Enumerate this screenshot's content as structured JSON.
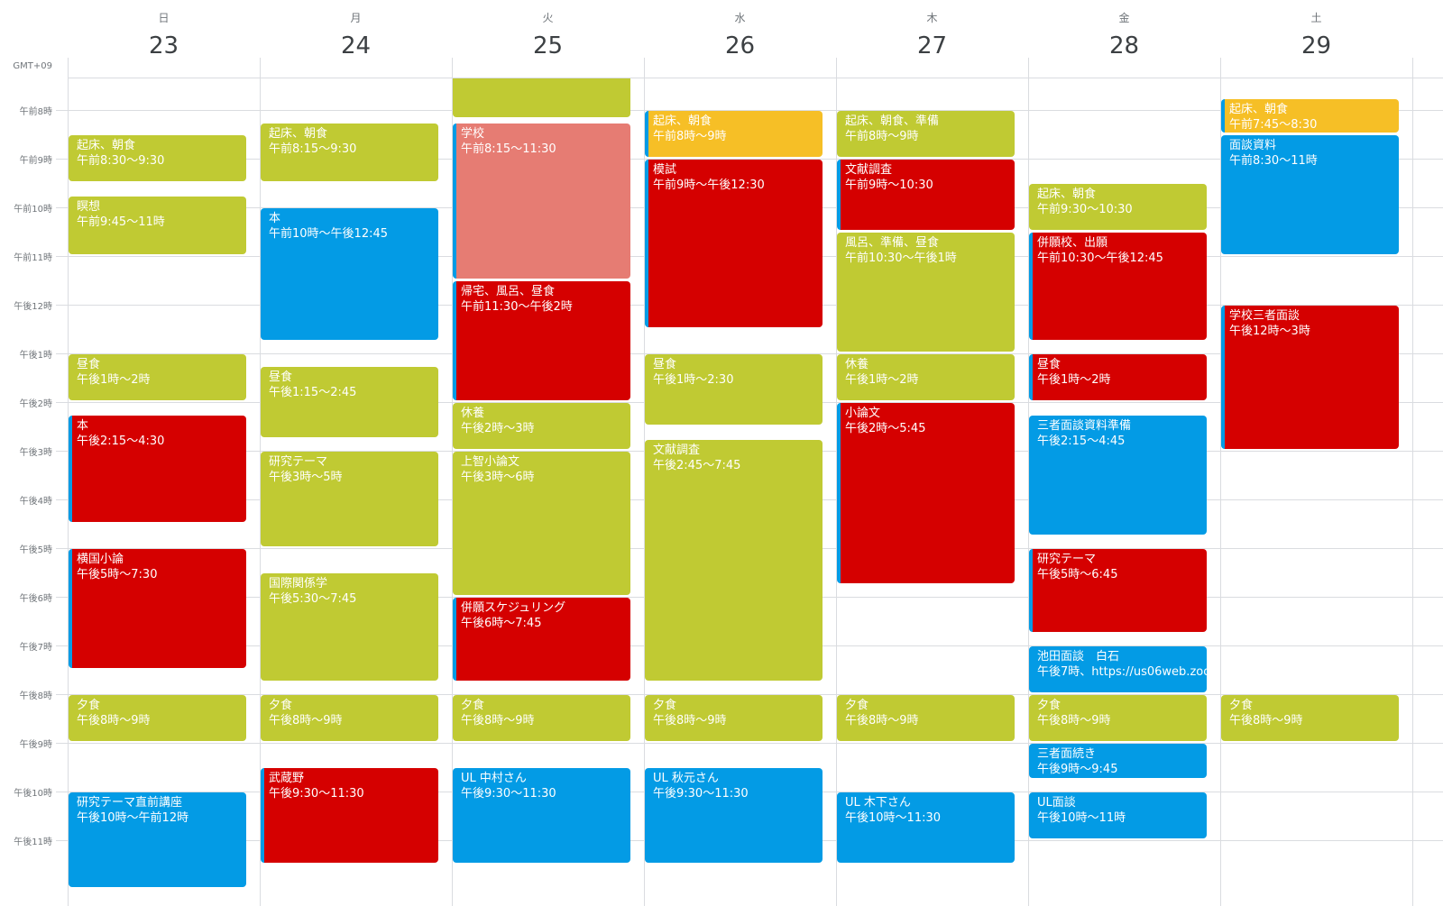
{
  "timezone": "GMT+09",
  "hours": [
    "午前8時",
    "午前9時",
    "午前10時",
    "午前11時",
    "午後12時",
    "午後1時",
    "午後2時",
    "午後3時",
    "午後4時",
    "午後5時",
    "午後6時",
    "午後7時",
    "午後8時",
    "午後9時",
    "午後10時",
    "午後11時"
  ],
  "days": [
    {
      "weekday": "日",
      "date": "23",
      "events": [
        {
          "title": "起床、朝食",
          "time": "午前8:30〜9:30"
        },
        {
          "title": "瞑想",
          "time": "午前9:45〜11時"
        },
        {
          "title": "昼食",
          "time": "午後1時〜2時"
        },
        {
          "title": "本",
          "time": "午後2:15〜4:30"
        },
        {
          "title": "横国小論",
          "time": "午後5時〜7:30"
        },
        {
          "title": "夕食",
          "time": "午後8時〜9時"
        },
        {
          "title": "研究テーマ直前講座",
          "time": "午後10時〜午前12時"
        }
      ]
    },
    {
      "weekday": "月",
      "date": "24",
      "events": [
        {
          "title": "起床、朝食",
          "time": "午前8:15〜9:30"
        },
        {
          "title": "本",
          "time": "午前10時〜午後12:45"
        },
        {
          "title": "昼食",
          "time": "午後1:15〜2:45"
        },
        {
          "title": "研究テーマ",
          "time": "午後3時〜5時"
        },
        {
          "title": "国際関係学",
          "time": "午後5:30〜7:45"
        },
        {
          "title": "夕食",
          "time": "午後8時〜9時"
        },
        {
          "title": "武蔵野",
          "time": "午後9:30〜11:30"
        }
      ]
    },
    {
      "weekday": "火",
      "date": "25",
      "events": [
        {
          "title": "学校",
          "time": "午前8:15〜11:30"
        },
        {
          "title": "帰宅、風呂、昼食",
          "time": "午前11:30〜午後2時"
        },
        {
          "title": "休養",
          "time": "午後2時〜3時"
        },
        {
          "title": "上智小論文",
          "time": "午後3時〜6時"
        },
        {
          "title": "併願スケジュリング",
          "time": "午後6時〜7:45"
        },
        {
          "title": "夕食",
          "time": "午後8時〜9時"
        },
        {
          "title": "UL 中村さん",
          "time": "午後9:30〜11:30"
        }
      ]
    },
    {
      "weekday": "水",
      "date": "26",
      "events": [
        {
          "title": "起床、朝食",
          "time": "午前8時〜9時"
        },
        {
          "title": "模試",
          "time": "午前9時〜午後12:30"
        },
        {
          "title": "昼食",
          "time": "午後1時〜2:30"
        },
        {
          "title": "文献調査",
          "time": "午後2:45〜7:45"
        },
        {
          "title": "夕食",
          "time": "午後8時〜9時"
        },
        {
          "title": "UL 秋元さん",
          "time": "午後9:30〜11:30"
        }
      ]
    },
    {
      "weekday": "木",
      "date": "27",
      "events": [
        {
          "title": "起床、朝食、準備",
          "time": "午前8時〜9時"
        },
        {
          "title": "文献調査",
          "time": "午前9時〜10:30"
        },
        {
          "title": "風呂、準備、昼食",
          "time": "午前10:30〜午後1時"
        },
        {
          "title": "休養",
          "time": "午後1時〜2時"
        },
        {
          "title": "小論文",
          "time": "午後2時〜5:45"
        },
        {
          "title": "夕食",
          "time": "午後8時〜9時"
        },
        {
          "title": "UL 木下さん",
          "time": "午後10時〜11:30"
        }
      ]
    },
    {
      "weekday": "金",
      "date": "28",
      "events": [
        {
          "title": "起床、朝食",
          "time": "午前9:30〜10:30"
        },
        {
          "title": "併願校、出願",
          "time": "午前10:30〜午後12:45"
        },
        {
          "title": "昼食",
          "time": "午後1時〜2時"
        },
        {
          "title": "三者面談資料準備",
          "time": "午後2:15〜4:45"
        },
        {
          "title": "研究テーマ",
          "time": "午後5時〜6:45"
        },
        {
          "title": "池田面談　白石",
          "time": "午後7時、https://us06web.zoo"
        },
        {
          "title": "夕食",
          "time": "午後8時〜9時"
        },
        {
          "title": "三者面続き",
          "time": "午後9時〜9:45"
        },
        {
          "title": "UL面談",
          "time": "午後10時〜11時"
        }
      ]
    },
    {
      "weekday": "土",
      "date": "29",
      "events": [
        {
          "title": "起床、朝食",
          "time": "午前7:45〜8:30"
        },
        {
          "title": "面談資料",
          "time": "午前8:30〜11時"
        },
        {
          "title": "学校三者面談",
          "time": "午後12時〜3時"
        },
        {
          "title": "夕食",
          "time": "午後8時〜9時"
        }
      ]
    }
  ]
}
